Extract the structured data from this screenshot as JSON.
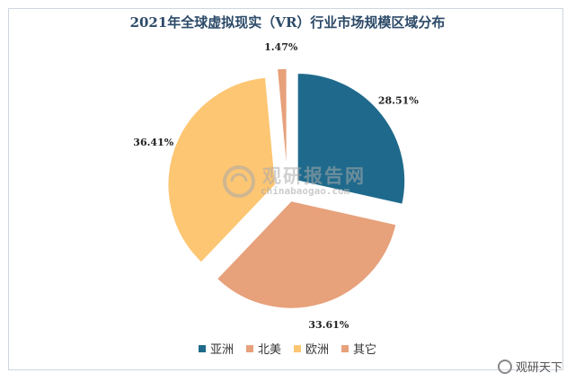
{
  "chart_data": {
    "type": "pie",
    "title": "2021年全球虚拟现实（VR）行业市场规模区域分布",
    "categories": [
      "亚洲",
      "北美",
      "欧洲",
      "其它"
    ],
    "values": [
      28.51,
      33.61,
      36.41,
      1.47
    ],
    "labels": [
      "28.51%",
      "33.61%",
      "36.41%",
      "1.47%"
    ],
    "colors": [
      "#1f6a8c",
      "#e7a17b",
      "#fdc673",
      "#e7a17b"
    ],
    "exploded": true,
    "legend_position": "bottom"
  },
  "watermark": {
    "main": "观研报告网",
    "sub": "chinabaogao.com"
  },
  "corner_mark": {
    "text": "观研天下"
  }
}
